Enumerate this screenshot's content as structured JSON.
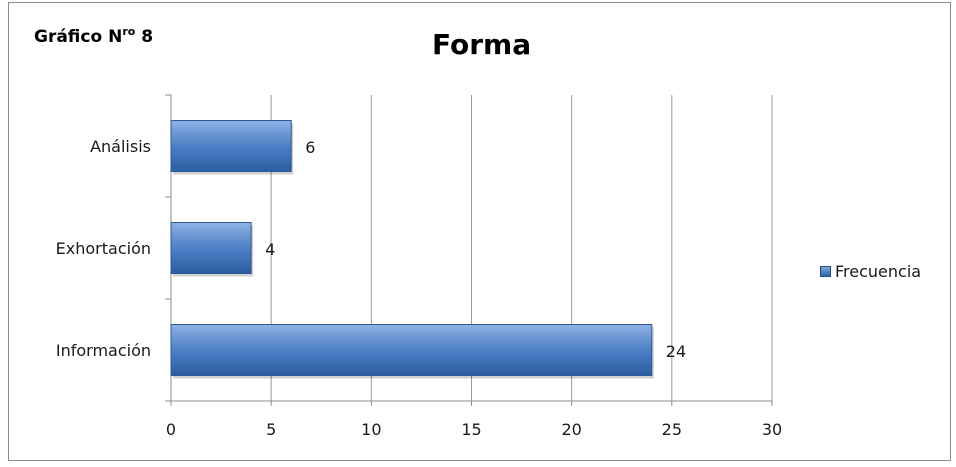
{
  "figure_label": {
    "prefix": "Gráfico N",
    "superscript": "ro",
    "number": " 8"
  },
  "colors": {
    "bar_fill": "#4a7ec4",
    "bar_edge": "#2d5a94",
    "grid": "#9a9a9a",
    "axis": "#8c8c8c"
  },
  "chart_data": {
    "type": "bar",
    "orientation": "horizontal",
    "title": "Forma",
    "categories": [
      "Análisis",
      "Exhortación",
      "Información"
    ],
    "series": [
      {
        "name": "Frecuencia",
        "values": [
          6,
          4,
          24
        ]
      }
    ],
    "data_labels": [
      "6",
      "4",
      "24"
    ],
    "xlim": [
      0,
      30
    ],
    "xticks": [
      0,
      5,
      10,
      15,
      20,
      25,
      30
    ],
    "xlabel": "",
    "ylabel": "",
    "grid": "vertical",
    "legend": "right"
  }
}
